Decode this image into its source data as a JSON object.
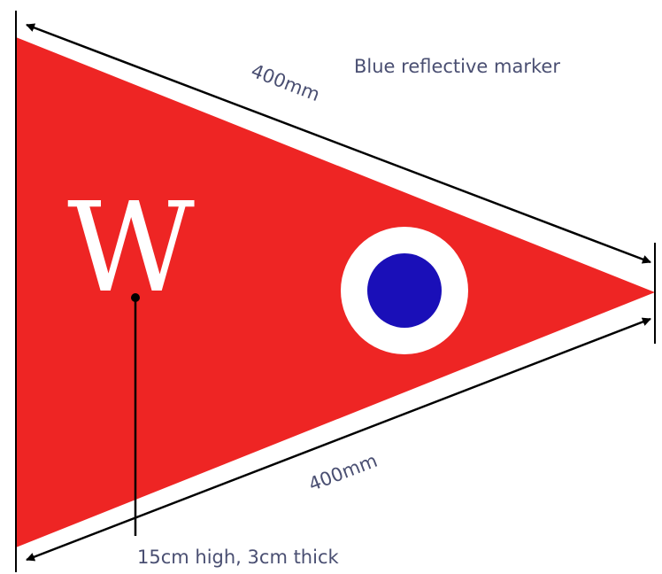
{
  "labels": {
    "top_length": "400mm",
    "marker": "Blue reflective marker",
    "letter": "W",
    "bottom_length": "400mm",
    "letter_note": "15cm high, 3cm thick"
  }
}
